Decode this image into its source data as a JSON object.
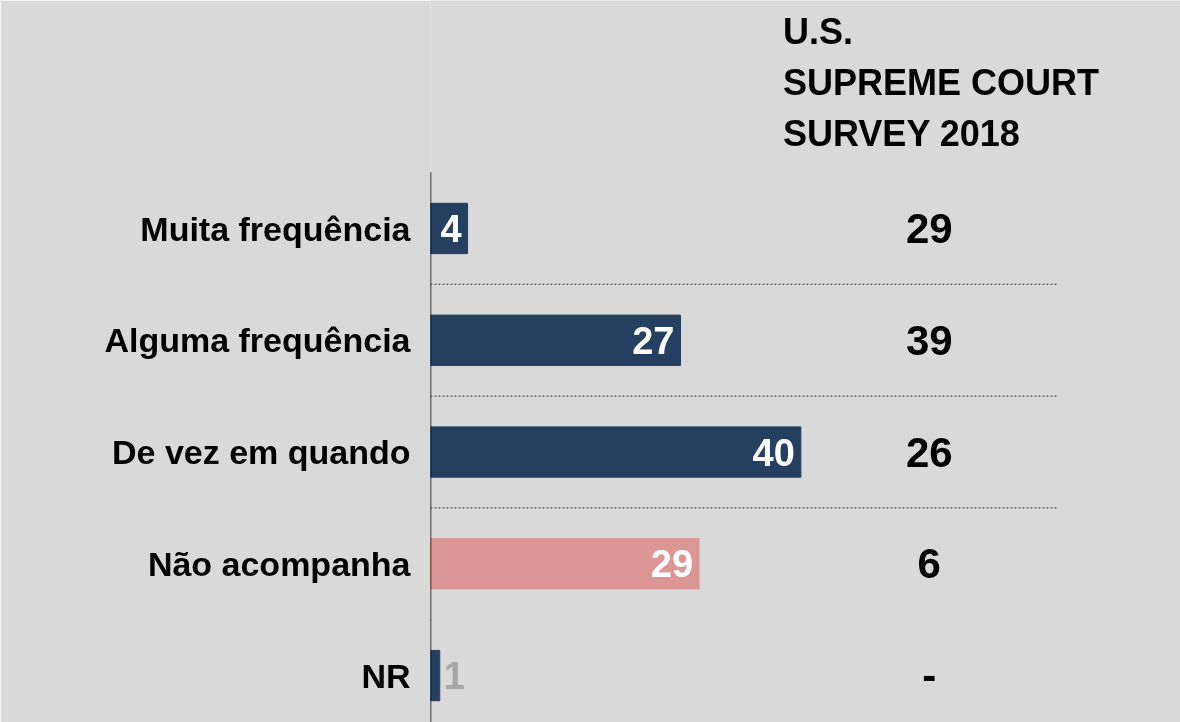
{
  "chart_data": {
    "type": "bar",
    "orientation": "horizontal",
    "categories": [
      "Muita frequência",
      "Alguma frequência",
      "De vez em quando",
      "Não acompanha",
      "NR"
    ],
    "values": [
      4,
      27,
      40,
      29,
      1
    ],
    "colors": [
      "#243f60",
      "#243f60",
      "#243f60",
      "#dc9696",
      "#243f60"
    ],
    "xlim": [
      0,
      81
    ],
    "tick_labels": "y",
    "data_labels": true,
    "grid": false,
    "annotations": [
      "U.S.\nSUPREME COURT\nSURVEY 2018",
      "29",
      "39",
      "26",
      "6",
      "-"
    ]
  }
}
